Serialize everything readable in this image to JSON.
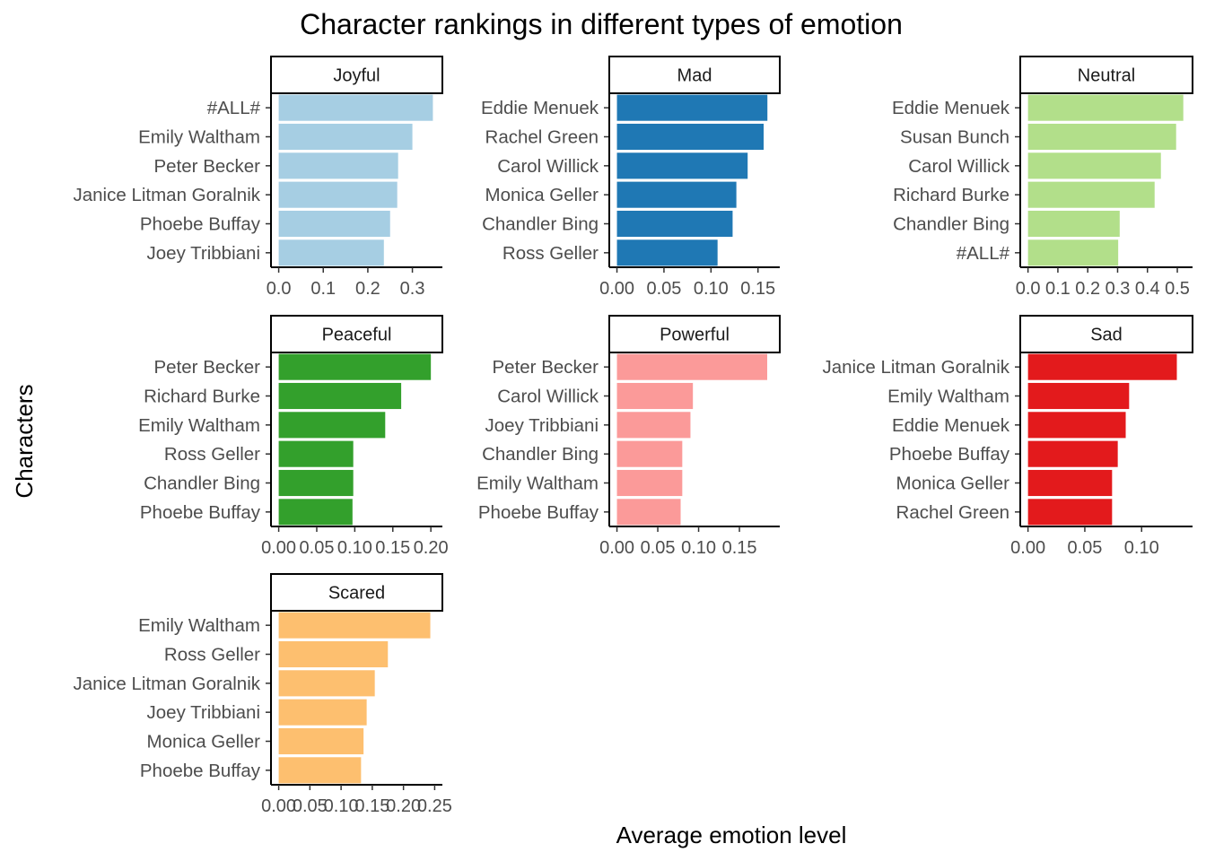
{
  "chart_data": {
    "type": "bar",
    "orientation": "horizontal",
    "title": "Character rankings in different types of emotion",
    "xlabel": "Average emotion level",
    "ylabel": "Characters",
    "grid": false,
    "legend": "none",
    "panels": [
      {
        "name": "Joyful",
        "color": "#a6cee3",
        "xlim": [
          0,
          0.35
        ],
        "ticks": [
          0.0,
          0.1,
          0.2,
          0.3
        ],
        "tick_labels": [
          "0.0",
          "0.1",
          "0.2",
          "0.3"
        ],
        "categories": [
          "#ALL#",
          "Emily Waltham",
          "Peter Becker",
          "Janice Litman Goralnik",
          "Phoebe Buffay",
          "Joey Tribbiani"
        ],
        "values": [
          0.346,
          0.3,
          0.268,
          0.266,
          0.25,
          0.236
        ]
      },
      {
        "name": "Mad",
        "color": "#1f78b4",
        "xlim": [
          0,
          0.165
        ],
        "ticks": [
          0.0,
          0.05,
          0.1,
          0.15
        ],
        "tick_labels": [
          "0.00",
          "0.05",
          "0.10",
          "0.15"
        ],
        "categories": [
          "Eddie Menuek",
          "Rachel Green",
          "Carol Willick",
          "Monica Geller",
          "Chandler Bing",
          "Ross Geller"
        ],
        "values": [
          0.16,
          0.156,
          0.139,
          0.127,
          0.123,
          0.107
        ]
      },
      {
        "name": "Neutral",
        "color": "#b2df8a",
        "xlim": [
          0,
          0.525
        ],
        "ticks": [
          0.0,
          0.1,
          0.2,
          0.3,
          0.4,
          0.5
        ],
        "tick_labels": [
          "0.0",
          "0.1",
          "0.2",
          "0.3",
          "0.4",
          "0.5"
        ],
        "categories": [
          "Eddie Menuek",
          "Susan Bunch",
          "Carol Willick",
          "Richard Burke",
          "Chandler Bing",
          "#ALL#"
        ],
        "values": [
          0.52,
          0.496,
          0.445,
          0.424,
          0.307,
          0.302
        ]
      },
      {
        "name": "Peaceful",
        "color": "#33a02c",
        "xlim": [
          0,
          0.205
        ],
        "ticks": [
          0.0,
          0.05,
          0.1,
          0.15,
          0.2
        ],
        "tick_labels": [
          "0.00",
          "0.05",
          "0.10",
          "0.15",
          "0.20"
        ],
        "categories": [
          "Peter Becker",
          "Richard Burke",
          "Emily Waltham",
          "Ross Geller",
          "Chandler Bing",
          "Phoebe Buffay"
        ],
        "values": [
          0.2,
          0.161,
          0.14,
          0.098,
          0.098,
          0.097
        ]
      },
      {
        "name": "Powerful",
        "color": "#fb9a99",
        "xlim": [
          0,
          0.19
        ],
        "ticks": [
          0.0,
          0.05,
          0.1,
          0.15
        ],
        "tick_labels": [
          "0.00",
          "0.05",
          "0.10",
          "0.15"
        ],
        "categories": [
          "Peter Becker",
          "Carol Willick",
          "Joey Tribbiani",
          "Chandler Bing",
          "Emily Waltham",
          "Phoebe Buffay"
        ],
        "values": [
          0.184,
          0.093,
          0.09,
          0.08,
          0.08,
          0.078
        ]
      },
      {
        "name": "Sad",
        "color": "#e31a1c",
        "xlim": [
          0,
          0.138
        ],
        "ticks": [
          0.0,
          0.05,
          0.1
        ],
        "tick_labels": [
          "0.00",
          "0.05",
          "0.10"
        ],
        "categories": [
          "Janice Litman Goralnik",
          "Emily Waltham",
          "Eddie Menuek",
          "Phoebe Buffay",
          "Monica Geller",
          "Rachel Green"
        ],
        "values": [
          0.131,
          0.089,
          0.086,
          0.079,
          0.074,
          0.074
        ]
      },
      {
        "name": "Scared",
        "color": "#fdbf6f",
        "xlim": [
          0,
          0.25
        ],
        "ticks": [
          0.0,
          0.05,
          0.1,
          0.15,
          0.2,
          0.25
        ],
        "tick_labels": [
          "0.00",
          "0.05",
          "0.10",
          "0.15",
          "0.20",
          "0.25"
        ],
        "categories": [
          "Emily Waltham",
          "Ross Geller",
          "Janice Litman Goralnik",
          "Joey Tribbiani",
          "Monica Geller",
          "Phoebe Buffay"
        ],
        "values": [
          0.243,
          0.175,
          0.154,
          0.141,
          0.136,
          0.132
        ]
      }
    ]
  }
}
